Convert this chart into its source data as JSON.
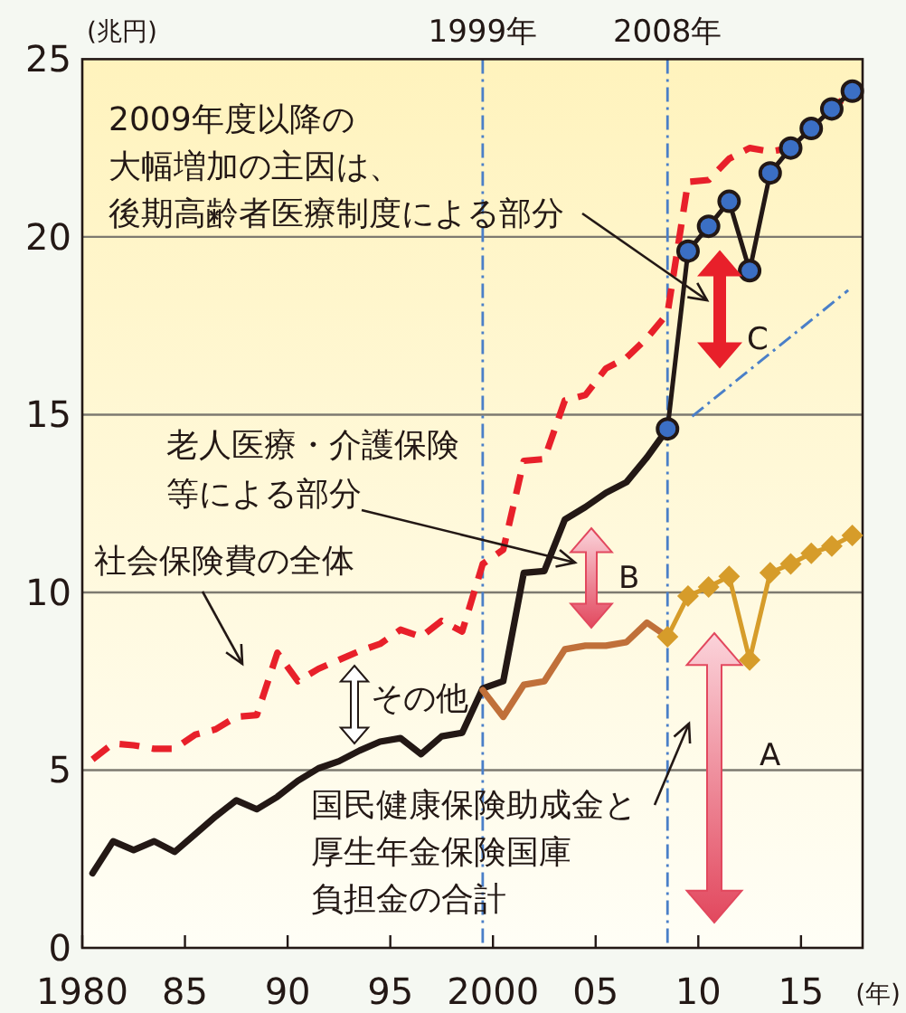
{
  "chart_data": {
    "type": "line",
    "ylabel": "(兆円)",
    "xlabel": "(年)",
    "xlim": [
      1980,
      2018
    ],
    "ylim": [
      0,
      25
    ],
    "xticks": [
      {
        "value": 1980,
        "label": "1980"
      },
      {
        "value": 1985,
        "label": "85"
      },
      {
        "value": 1990,
        "label": "90"
      },
      {
        "value": 1995,
        "label": "95"
      },
      {
        "value": 2000,
        "label": "2000"
      },
      {
        "value": 2005,
        "label": "05"
      },
      {
        "value": 2010,
        "label": "10"
      },
      {
        "value": 2015,
        "label": "15"
      }
    ],
    "yticks": [
      0,
      5,
      10,
      15,
      20,
      25
    ],
    "grid": "y",
    "series": [
      {
        "color": "#231815",
        "line_style": "solid",
        "marker": "none",
        "x": [
          1980.5,
          1981.5,
          1982.5,
          1983.5,
          1984.5,
          1985.5,
          1986.5,
          1987.5,
          1988.5,
          1989.5,
          1990.5,
          1991.5,
          1992.5,
          1993.5,
          1994.5,
          1995.5,
          1996.5,
          1997.5,
          1998.5,
          1999.5,
          2000.5,
          2001.5,
          2002.5,
          2003.5,
          2004.5,
          2005.5,
          2006.5,
          2007.5,
          2008.5
        ],
        "values": [
          2.1,
          3.0,
          2.75,
          3.0,
          2.7,
          3.2,
          3.7,
          4.15,
          3.9,
          4.25,
          4.7,
          5.05,
          5.25,
          5.55,
          5.8,
          5.9,
          5.45,
          5.95,
          6.05,
          7.3,
          7.5,
          10.55,
          10.6,
          12.05,
          12.4,
          12.8,
          13.1,
          13.8,
          14.6
        ]
      },
      {
        "color": "#e8202a",
        "line_style": "dashed",
        "marker": "none",
        "x": [
          1980.5,
          1981.5,
          1982.5,
          1983.5,
          1984.5,
          1985.5,
          1986.5,
          1987.5,
          1988.5,
          1989.5,
          1990.5,
          1991.5,
          1992.5,
          1993.5,
          1994.5,
          1995.5,
          1996.5,
          1997.5,
          1998.5,
          1999.5,
          2000.5,
          2001.5,
          2002.5,
          2003.5,
          2004.5,
          2005.5,
          2006.5,
          2007.5,
          2008.5,
          2009.5,
          2010.5,
          2011.5,
          2012.5,
          2013.5,
          2014.5,
          2015.5,
          2016.5,
          2017.5
        ],
        "values": [
          5.3,
          5.75,
          5.7,
          5.6,
          5.6,
          6.0,
          6.15,
          6.5,
          6.55,
          8.3,
          7.5,
          7.85,
          8.1,
          8.35,
          8.55,
          8.95,
          8.75,
          9.2,
          8.9,
          10.8,
          11.2,
          13.7,
          13.75,
          15.4,
          15.55,
          16.3,
          16.6,
          17.15,
          17.85,
          21.55,
          21.6,
          22.2,
          22.5,
          22.4,
          22.5,
          23.05,
          23.6,
          24.1
        ]
      },
      {
        "color": "#231815",
        "line_style": "solid",
        "marker": "circle",
        "x": [
          2008.5,
          2009.5,
          2010.5,
          2011.5,
          2012.5,
          2013.5,
          2014.5,
          2015.5,
          2016.5,
          2017.5
        ],
        "values": [
          14.6,
          19.6,
          20.3,
          21.0,
          19.05,
          21.8,
          22.5,
          23.05,
          23.6,
          24.1
        ]
      },
      {
        "color": "#c0703a",
        "line_style": "solid",
        "marker": "none",
        "x": [
          1999.5,
          2000.5,
          2001.5,
          2002.5,
          2003.5,
          2004.5,
          2005.5,
          2006.5,
          2007.5,
          2008.5
        ],
        "values": [
          7.25,
          6.5,
          7.4,
          7.5,
          8.4,
          8.5,
          8.5,
          8.6,
          9.15,
          8.75
        ]
      },
      {
        "color": "#d69c2a",
        "line_style": "solid",
        "marker": "diamond",
        "x": [
          2008.5,
          2009.5,
          2010.5,
          2011.5,
          2012.5,
          2013.5,
          2014.5,
          2015.5,
          2016.5,
          2017.5
        ],
        "values": [
          8.75,
          9.9,
          10.15,
          10.45,
          8.1,
          10.55,
          10.8,
          11.1,
          11.3,
          11.6
        ]
      },
      {
        "color": "#4a7fc8",
        "line_style": "dotted",
        "marker": "none",
        "x": [
          2009.7,
          2017.3
        ],
        "values": [
          14.95,
          18.5
        ]
      }
    ],
    "ref_lines": [
      {
        "axis": "x",
        "value": 1999.5,
        "label": "1999年",
        "color": "#4a7fc8",
        "line_style": "dotted"
      },
      {
        "axis": "x",
        "value": 2008.5,
        "label": "2008年",
        "color": "#4a7fc8",
        "line_style": "dotted"
      }
    ],
    "annotations": [
      "2009年度以降の",
      "大幅増加の主因は、",
      "後期高齢者医療制度による部分",
      "老人医療・介護保険",
      "等による部分",
      "社会保険費の全体",
      "その他",
      "国民健康保険助成金と",
      "厚生年金保険国庫",
      "負担金の合計",
      "A",
      "B",
      "C"
    ]
  }
}
